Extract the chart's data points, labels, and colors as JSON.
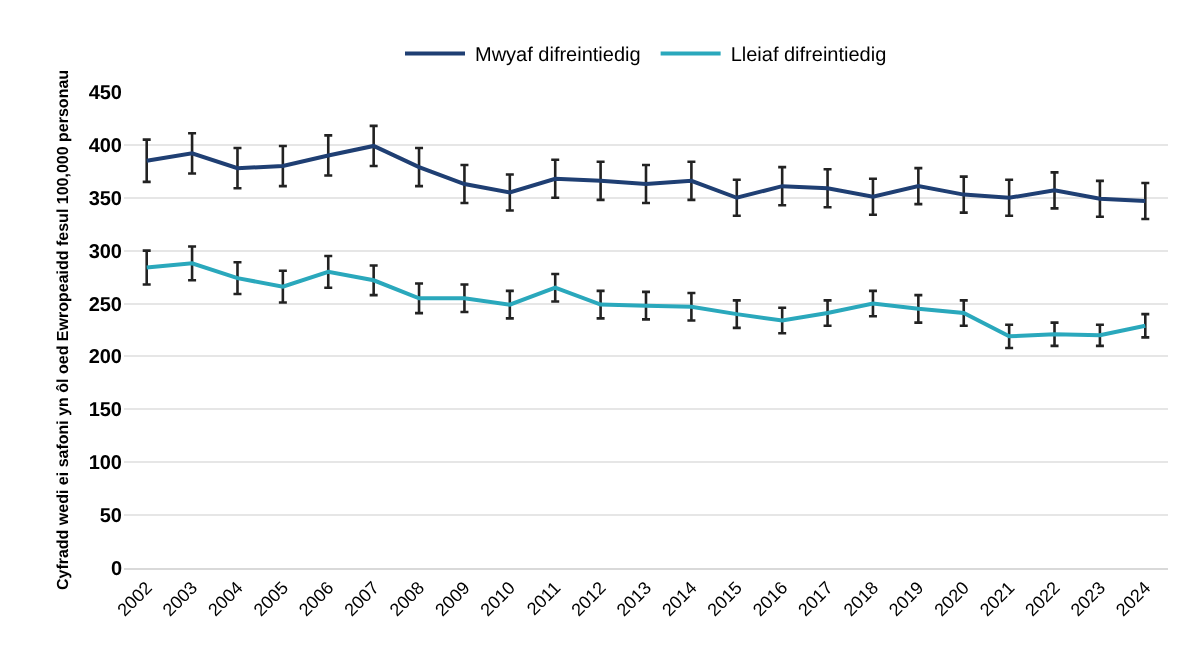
{
  "chart_data": {
    "type": "line",
    "ylabel": "Cyfradd wedi ei safoni yn ôl oed Ewropeaidd fesul 100,000 personau",
    "categories": [
      "2002",
      "2003",
      "2004",
      "2005",
      "2006",
      "2007",
      "2008",
      "2009",
      "2010",
      "2011",
      "2012",
      "2013",
      "2014",
      "2015",
      "2016",
      "2017",
      "2018",
      "2019",
      "2020",
      "2021",
      "2022",
      "2023",
      "2024"
    ],
    "series": [
      {
        "name": "Mwyaf difreintiedig",
        "color": "#1f3f73",
        "values": [
          385,
          392,
          378,
          380,
          390,
          399,
          379,
          363,
          355,
          368,
          366,
          363,
          366,
          350,
          361,
          359,
          351,
          361,
          353,
          350,
          357,
          349,
          347
        ],
        "errors": [
          20,
          19,
          19,
          19,
          19,
          19,
          18,
          18,
          17,
          18,
          18,
          18,
          18,
          17,
          18,
          18,
          17,
          17,
          17,
          17,
          17,
          17,
          17
        ]
      },
      {
        "name": "Lleiaf difreintiedig",
        "color": "#2aa8bc",
        "values": [
          284,
          288,
          274,
          266,
          280,
          272,
          255,
          255,
          249,
          265,
          249,
          248,
          247,
          240,
          234,
          241,
          250,
          245,
          241,
          219,
          221,
          220,
          229
        ],
        "errors": [
          16,
          16,
          15,
          15,
          15,
          14,
          14,
          13,
          13,
          13,
          13,
          13,
          13,
          13,
          12,
          12,
          12,
          13,
          12,
          11,
          11,
          10,
          11
        ]
      }
    ],
    "ylim": [
      0,
      450
    ],
    "yticks": [
      0,
      50,
      100,
      150,
      200,
      250,
      300,
      350,
      400,
      450
    ],
    "grid": "y",
    "legend": "top",
    "marker": "none",
    "line_style": "solid"
  }
}
